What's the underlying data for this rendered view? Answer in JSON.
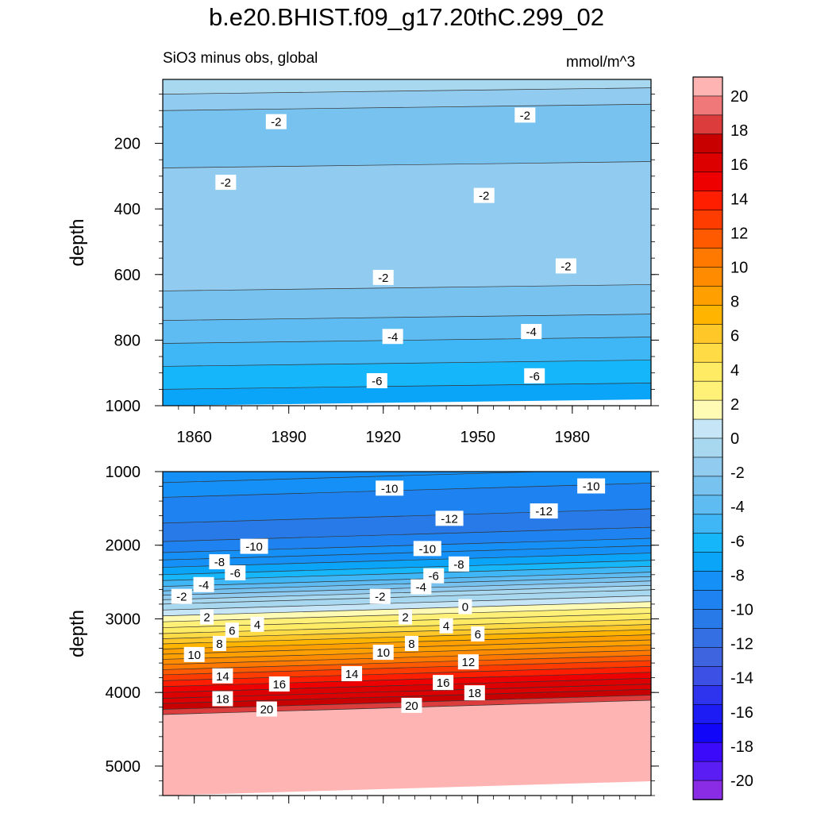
{
  "title": "b.e20.BHIST.f09_g17.20thC.299_02",
  "subtitle": "SiO3 minus obs, global",
  "units": "mmol/m^3",
  "chart_data": [
    {
      "type": "heatmap",
      "panel": "upper",
      "ylabel": "depth",
      "xlim": [
        1850,
        2005
      ],
      "ylim": [
        1000,
        5
      ],
      "x_ticks": [
        1860,
        1890,
        1920,
        1950,
        1980
      ],
      "y_ticks": [
        200,
        400,
        600,
        800,
        1000
      ],
      "bands": [
        {
          "depth": 5,
          "value": -1
        },
        {
          "depth": 50,
          "value": -2
        },
        {
          "depth": 100,
          "value": -3
        },
        {
          "depth": 275,
          "value": -2
        },
        {
          "depth": 650,
          "value": -3
        },
        {
          "depth": 740,
          "value": -4
        },
        {
          "depth": 810,
          "value": -5
        },
        {
          "depth": 880,
          "value": -6
        },
        {
          "depth": 950,
          "value": -7
        },
        {
          "depth": 1000,
          "value": -7
        }
      ],
      "contour_labels": [
        {
          "x": 1886,
          "depth": 135,
          "text": "-2"
        },
        {
          "x": 1965,
          "depth": 115,
          "text": "-2"
        },
        {
          "x": 1870,
          "depth": 320,
          "text": "-2"
        },
        {
          "x": 1952,
          "depth": 360,
          "text": "-2"
        },
        {
          "x": 1920,
          "depth": 610,
          "text": "-2"
        },
        {
          "x": 1978,
          "depth": 575,
          "text": "-2"
        },
        {
          "x": 1923,
          "depth": 790,
          "text": "-4"
        },
        {
          "x": 1967,
          "depth": 775,
          "text": "-4"
        },
        {
          "x": 1918,
          "depth": 925,
          "text": "-6"
        },
        {
          "x": 1968,
          "depth": 910,
          "text": "-6"
        }
      ]
    },
    {
      "type": "heatmap",
      "panel": "lower",
      "ylabel": "depth",
      "xlim": [
        1850,
        2005
      ],
      "ylim": [
        5400,
        1000
      ],
      "y_ticks": [
        1000,
        2000,
        3000,
        4000,
        5000
      ],
      "bands": [
        {
          "depth": 1000,
          "value": -8
        },
        {
          "depth": 1150,
          "value": -9
        },
        {
          "depth": 1350,
          "value": -10
        },
        {
          "depth": 1700,
          "value": -11
        },
        {
          "depth": 1950,
          "value": -10
        },
        {
          "depth": 2100,
          "value": -9
        },
        {
          "depth": 2200,
          "value": -8
        },
        {
          "depth": 2300,
          "value": -7
        },
        {
          "depth": 2400,
          "value": -6
        },
        {
          "depth": 2480,
          "value": -5
        },
        {
          "depth": 2560,
          "value": -4
        },
        {
          "depth": 2620,
          "value": -3
        },
        {
          "depth": 2680,
          "value": -2
        },
        {
          "depth": 2740,
          "value": -1
        },
        {
          "depth": 2800,
          "value": 0
        },
        {
          "depth": 2880,
          "value": 1
        },
        {
          "depth": 2960,
          "value": 2
        },
        {
          "depth": 3040,
          "value": 3
        },
        {
          "depth": 3120,
          "value": 4
        },
        {
          "depth": 3200,
          "value": 5
        },
        {
          "depth": 3270,
          "value": 6
        },
        {
          "depth": 3340,
          "value": 7
        },
        {
          "depth": 3410,
          "value": 8
        },
        {
          "depth": 3480,
          "value": 9
        },
        {
          "depth": 3550,
          "value": 10
        },
        {
          "depth": 3620,
          "value": 11
        },
        {
          "depth": 3690,
          "value": 12
        },
        {
          "depth": 3760,
          "value": 13
        },
        {
          "depth": 3840,
          "value": 14
        },
        {
          "depth": 3920,
          "value": 15
        },
        {
          "depth": 4000,
          "value": 16
        },
        {
          "depth": 4080,
          "value": 17
        },
        {
          "depth": 4150,
          "value": 18
        },
        {
          "depth": 4230,
          "value": 19
        },
        {
          "depth": 4300,
          "value": 21
        },
        {
          "depth": 5400,
          "value": 21
        }
      ],
      "contour_labels": [
        {
          "x": 1922,
          "depth": 1230,
          "text": "-10"
        },
        {
          "x": 1986,
          "depth": 1200,
          "text": "-10"
        },
        {
          "x": 1971,
          "depth": 1540,
          "text": "-12"
        },
        {
          "x": 1941,
          "depth": 1640,
          "text": "-12"
        },
        {
          "x": 1879,
          "depth": 2020,
          "text": "-10"
        },
        {
          "x": 1934,
          "depth": 2050,
          "text": "-10"
        },
        {
          "x": 1868,
          "depth": 2230,
          "text": "-8"
        },
        {
          "x": 1944,
          "depth": 2260,
          "text": "-8"
        },
        {
          "x": 1873,
          "depth": 2380,
          "text": "-6"
        },
        {
          "x": 1936,
          "depth": 2420,
          "text": "-6"
        },
        {
          "x": 1863,
          "depth": 2540,
          "text": "-4"
        },
        {
          "x": 1932,
          "depth": 2570,
          "text": "-4"
        },
        {
          "x": 1856,
          "depth": 2700,
          "text": "-2"
        },
        {
          "x": 1919,
          "depth": 2700,
          "text": "-2"
        },
        {
          "x": 1864,
          "depth": 2980,
          "text": "2"
        },
        {
          "x": 1927,
          "depth": 2980,
          "text": "2"
        },
        {
          "x": 1946,
          "depth": 2840,
          "text": "0"
        },
        {
          "x": 1872,
          "depth": 3160,
          "text": "6"
        },
        {
          "x": 1880,
          "depth": 3080,
          "text": "4"
        },
        {
          "x": 1940,
          "depth": 3100,
          "text": "4"
        },
        {
          "x": 1950,
          "depth": 3210,
          "text": "6"
        },
        {
          "x": 1868,
          "depth": 3340,
          "text": "8"
        },
        {
          "x": 1929,
          "depth": 3340,
          "text": "8"
        },
        {
          "x": 1860,
          "depth": 3490,
          "text": "10"
        },
        {
          "x": 1920,
          "depth": 3460,
          "text": "10"
        },
        {
          "x": 1947,
          "depth": 3590,
          "text": "12"
        },
        {
          "x": 1869,
          "depth": 3780,
          "text": "14"
        },
        {
          "x": 1910,
          "depth": 3750,
          "text": "14"
        },
        {
          "x": 1887,
          "depth": 3890,
          "text": "16"
        },
        {
          "x": 1939,
          "depth": 3870,
          "text": "16"
        },
        {
          "x": 1869,
          "depth": 4090,
          "text": "18"
        },
        {
          "x": 1949,
          "depth": 4010,
          "text": "18"
        },
        {
          "x": 1883,
          "depth": 4230,
          "text": "20"
        },
        {
          "x": 1929,
          "depth": 4180,
          "text": "20"
        }
      ]
    }
  ],
  "colorbar": {
    "levels": [
      -20,
      -18,
      -16,
      -14,
      -12,
      -10,
      -8,
      -6,
      -4,
      -2,
      0,
      2,
      4,
      6,
      8,
      10,
      12,
      14,
      16,
      18,
      20
    ],
    "labels": [
      "20",
      "18",
      "16",
      "14",
      "12",
      "10",
      "8",
      "6",
      "4",
      "2",
      "0",
      "-2",
      "-4",
      "-6",
      "-8",
      "-10",
      "-12",
      "-14",
      "-16",
      "-18",
      "-20"
    ],
    "colors": [
      "#ffb4b4",
      "#f07878",
      "#dc3c3c",
      "#c80000",
      "#dc0000",
      "#ef0000",
      "#ff1e00",
      "#ff3c00",
      "#ff5a00",
      "#ff7800",
      "#ff8c00",
      "#ffa000",
      "#ffb400",
      "#ffc828",
      "#ffdc46",
      "#ffeb64",
      "#fff078",
      "#fffab4",
      "#c6e6f7",
      "#a8d8f0",
      "#91cbef",
      "#78c2f0",
      "#5fbcf3",
      "#3fb6f5",
      "#16b6fa",
      "#0aa4f9",
      "#1490f6",
      "#1e82f0",
      "#287ae8",
      "#3470e4",
      "#3e64e0",
      "#3c50e6",
      "#2e34ee",
      "#1e1cf4",
      "#1206f8",
      "#3c0afa",
      "#5a1ef5",
      "#8a2be6"
    ]
  }
}
